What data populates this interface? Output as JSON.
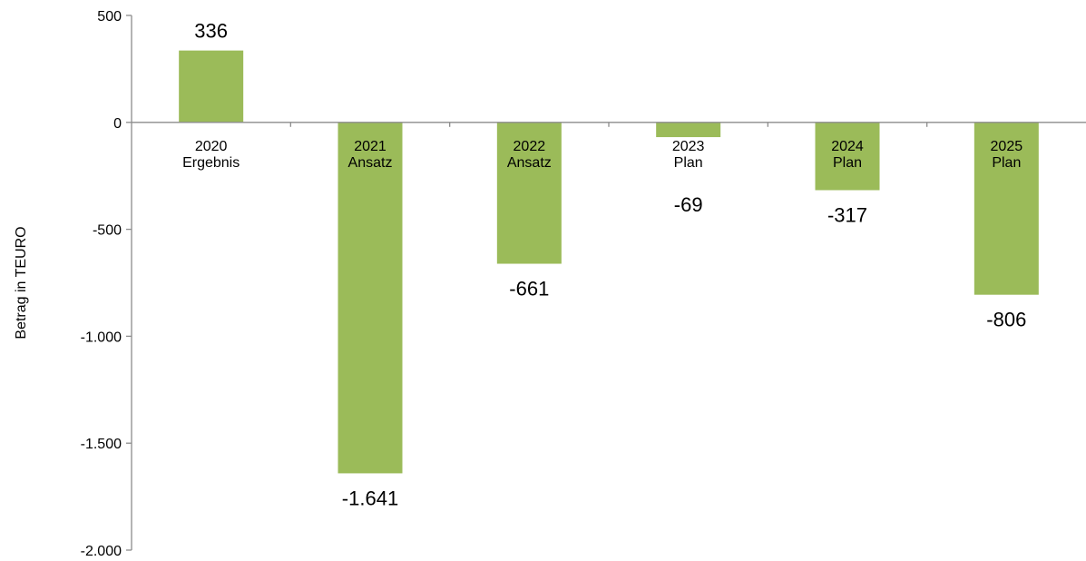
{
  "chart_data": {
    "type": "bar",
    "categories": [
      [
        "2020",
        "Ergebnis"
      ],
      [
        "2021",
        "Ansatz"
      ],
      [
        "2022",
        "Ansatz"
      ],
      [
        "2023",
        "Plan"
      ],
      [
        "2024",
        "Plan"
      ],
      [
        "2025",
        "Plan"
      ]
    ],
    "values": [
      336,
      -1641,
      -661,
      -69,
      -317,
      -806
    ],
    "data_labels": [
      "336",
      "-1.641",
      "-661",
      "-69",
      "-317",
      "-806"
    ],
    "ylabel": "Betrag in TEURO",
    "ylim": [
      -2000,
      500
    ],
    "yticks": [
      500,
      0,
      -500,
      -1000,
      -1500,
      -2000
    ],
    "ytick_labels": [
      "500",
      "0",
      "-500",
      "-1.000",
      "-1.500",
      "-2.000"
    ],
    "grid": false,
    "legend": "none",
    "colors": {
      "bar": "#9BBB59",
      "axis": "#8C8C8C",
      "text": "#000000"
    }
  }
}
